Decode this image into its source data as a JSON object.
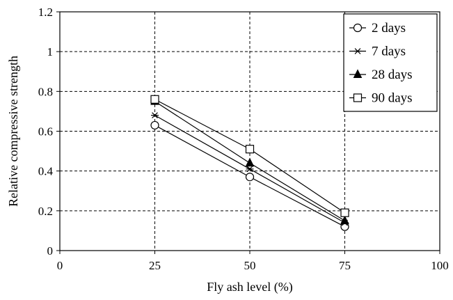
{
  "chart_data": {
    "type": "line",
    "title": "",
    "xlabel": "Fly ash level (%)",
    "ylabel": "Relative compressive strength",
    "xlim": [
      0,
      100
    ],
    "ylim": [
      0,
      1.2
    ],
    "xticks": [
      0,
      25,
      50,
      75,
      100
    ],
    "yticks": [
      0,
      0.2,
      0.4,
      0.6,
      0.8,
      1,
      1.2
    ],
    "xtick_labels": [
      "0",
      "25",
      "50",
      "75",
      "100"
    ],
    "ytick_labels": [
      "0",
      "0.2",
      "0.4",
      "0.6",
      "0.8",
      "1",
      "1.2"
    ],
    "grid": true,
    "legend_position": "top-right",
    "x": [
      25,
      50,
      75
    ],
    "series": [
      {
        "name": "2 days",
        "marker": "circle-open",
        "values": [
          0.63,
          0.37,
          0.12
        ]
      },
      {
        "name": "7 days",
        "marker": "asterisk",
        "values": [
          0.68,
          0.41,
          0.14
        ]
      },
      {
        "name": "28 days",
        "marker": "triangle-filled",
        "values": [
          0.75,
          0.44,
          0.15
        ]
      },
      {
        "name": "90 days",
        "marker": "square-open",
        "values": [
          0.76,
          0.51,
          0.19
        ]
      }
    ]
  }
}
